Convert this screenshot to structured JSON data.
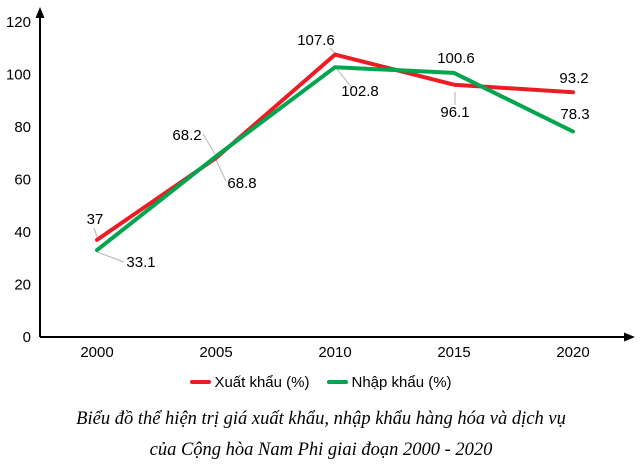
{
  "chart_data": {
    "type": "line",
    "categories": [
      "2000",
      "2005",
      "2010",
      "2015",
      "2020"
    ],
    "series": [
      {
        "name": "Xuất khẩu (%)",
        "color": "#ED1C24",
        "values": [
          37,
          68.2,
          107.6,
          96.1,
          93.2
        ]
      },
      {
        "name": "Nhập khẩu (%)",
        "color": "#00A550",
        "values": [
          33.1,
          68.8,
          102.8,
          100.6,
          78.3
        ]
      }
    ],
    "ylim": [
      0,
      120
    ],
    "yticks": [
      0,
      20,
      40,
      60,
      80,
      100,
      120
    ],
    "grid": false,
    "data_labels": true,
    "legend_position": "bottom"
  },
  "caption": {
    "line1": "Biểu đồ thể hiện trị giá xuất khẩu, nhập khẩu hàng hóa và dịch vụ",
    "line2": "của Cộng hòa Nam Phi giai đoạn 2000 - 2020"
  },
  "colors": {
    "axis": "#000000",
    "tick_text": "#000000",
    "data_label_text": "#000000",
    "leader_line": "#bfbfbf",
    "background": "#ffffff"
  }
}
